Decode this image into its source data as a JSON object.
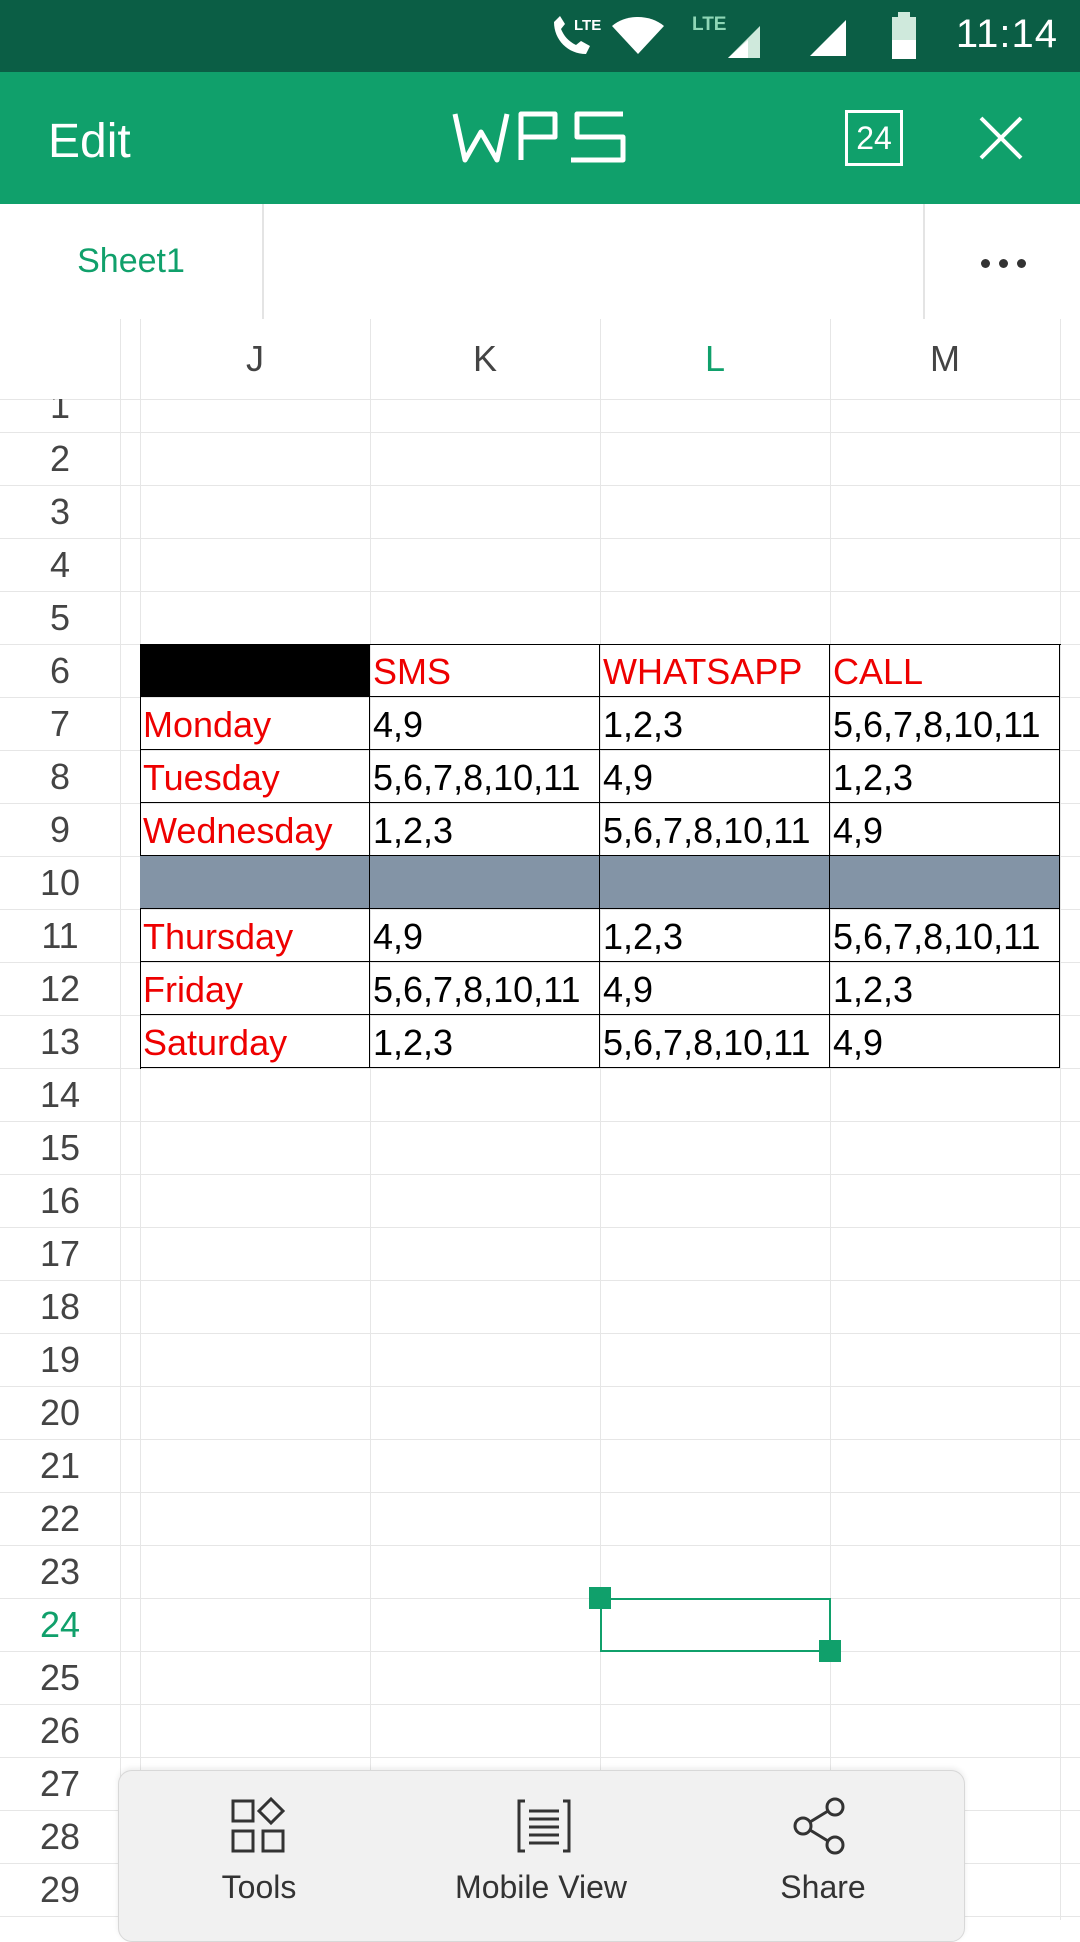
{
  "status_bar": {
    "time": "11:14",
    "network_left": "LTE",
    "network_right": "LTE"
  },
  "app_bar": {
    "edit_label": "Edit",
    "logo_text": "WPS",
    "page_count": "24"
  },
  "sheet_tabs": {
    "active_tab": "Sheet1"
  },
  "columns": [
    "J",
    "K",
    "L",
    "M"
  ],
  "active_column": "L",
  "rows": [
    "1",
    "2",
    "3",
    "4",
    "5",
    "6",
    "7",
    "8",
    "9",
    "10",
    "11",
    "12",
    "13",
    "14",
    "15",
    "16",
    "17",
    "18",
    "19",
    "20",
    "21",
    "22",
    "23",
    "24",
    "25",
    "26",
    "27",
    "28",
    "29"
  ],
  "active_row": "24",
  "table": {
    "header": [
      "",
      "SMS",
      "WHATSAPP",
      "CALL"
    ],
    "rows": [
      [
        "Monday",
        "4,9",
        "1,2,3",
        "5,6,7,8,10,11"
      ],
      [
        "Tuesday",
        "5,6,7,8,10,11",
        "4,9",
        "1,2,3"
      ],
      [
        "Wednesday",
        "1,2,3",
        "5,6,7,8,10,11",
        "4,9"
      ],
      [
        "",
        "",
        "",
        ""
      ],
      [
        "Thursday",
        "4,9",
        "1,2,3",
        "5,6,7,8,10,11"
      ],
      [
        "Friday",
        "5,6,7,8,10,11",
        "4,9",
        "1,2,3"
      ],
      [
        "Saturday",
        "1,2,3",
        "5,6,7,8,10,11",
        "4,9"
      ]
    ]
  },
  "colors": {
    "accent": "#10a06b",
    "status_bar": "#0b5e45",
    "header_text": "#ee0000",
    "divider_fill": "#8394a6",
    "corner_fill": "#000000"
  },
  "toolbar": {
    "tools_label": "Tools",
    "mobile_view_label": "Mobile View",
    "share_label": "Share"
  }
}
